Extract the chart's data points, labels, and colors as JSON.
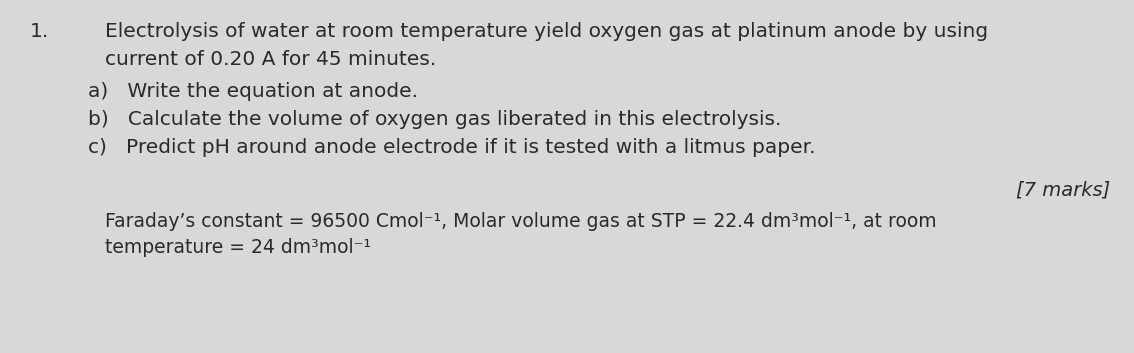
{
  "background_color": "#d8d8d8",
  "fig_width": 11.34,
  "fig_height": 3.53,
  "number": "1.",
  "line1": "Electrolysis of water at room temperature yield oxygen gas at platinum anode by using",
  "line2": "current of 0.20 A for 45 minutes.",
  "item_a": "a)   Write the equation at anode.",
  "item_b": "b)   Calculate the volume of oxygen gas liberated in this electrolysis.",
  "item_c": "c)   Predict pH around anode electrode if it is tested with a litmus paper.",
  "marks": "[7 marks]",
  "footer_line1": "Faraday’s constant = 96500 Cmol⁻¹, Molar volume gas at STP = 22.4 dm³mol⁻¹, at room",
  "footer_line2": "temperature = 24 dm³mol⁻¹",
  "text_color": "#2a2a2a",
  "font_size_main": 14.5,
  "font_size_marks": 14.0,
  "font_size_footer": 13.5
}
